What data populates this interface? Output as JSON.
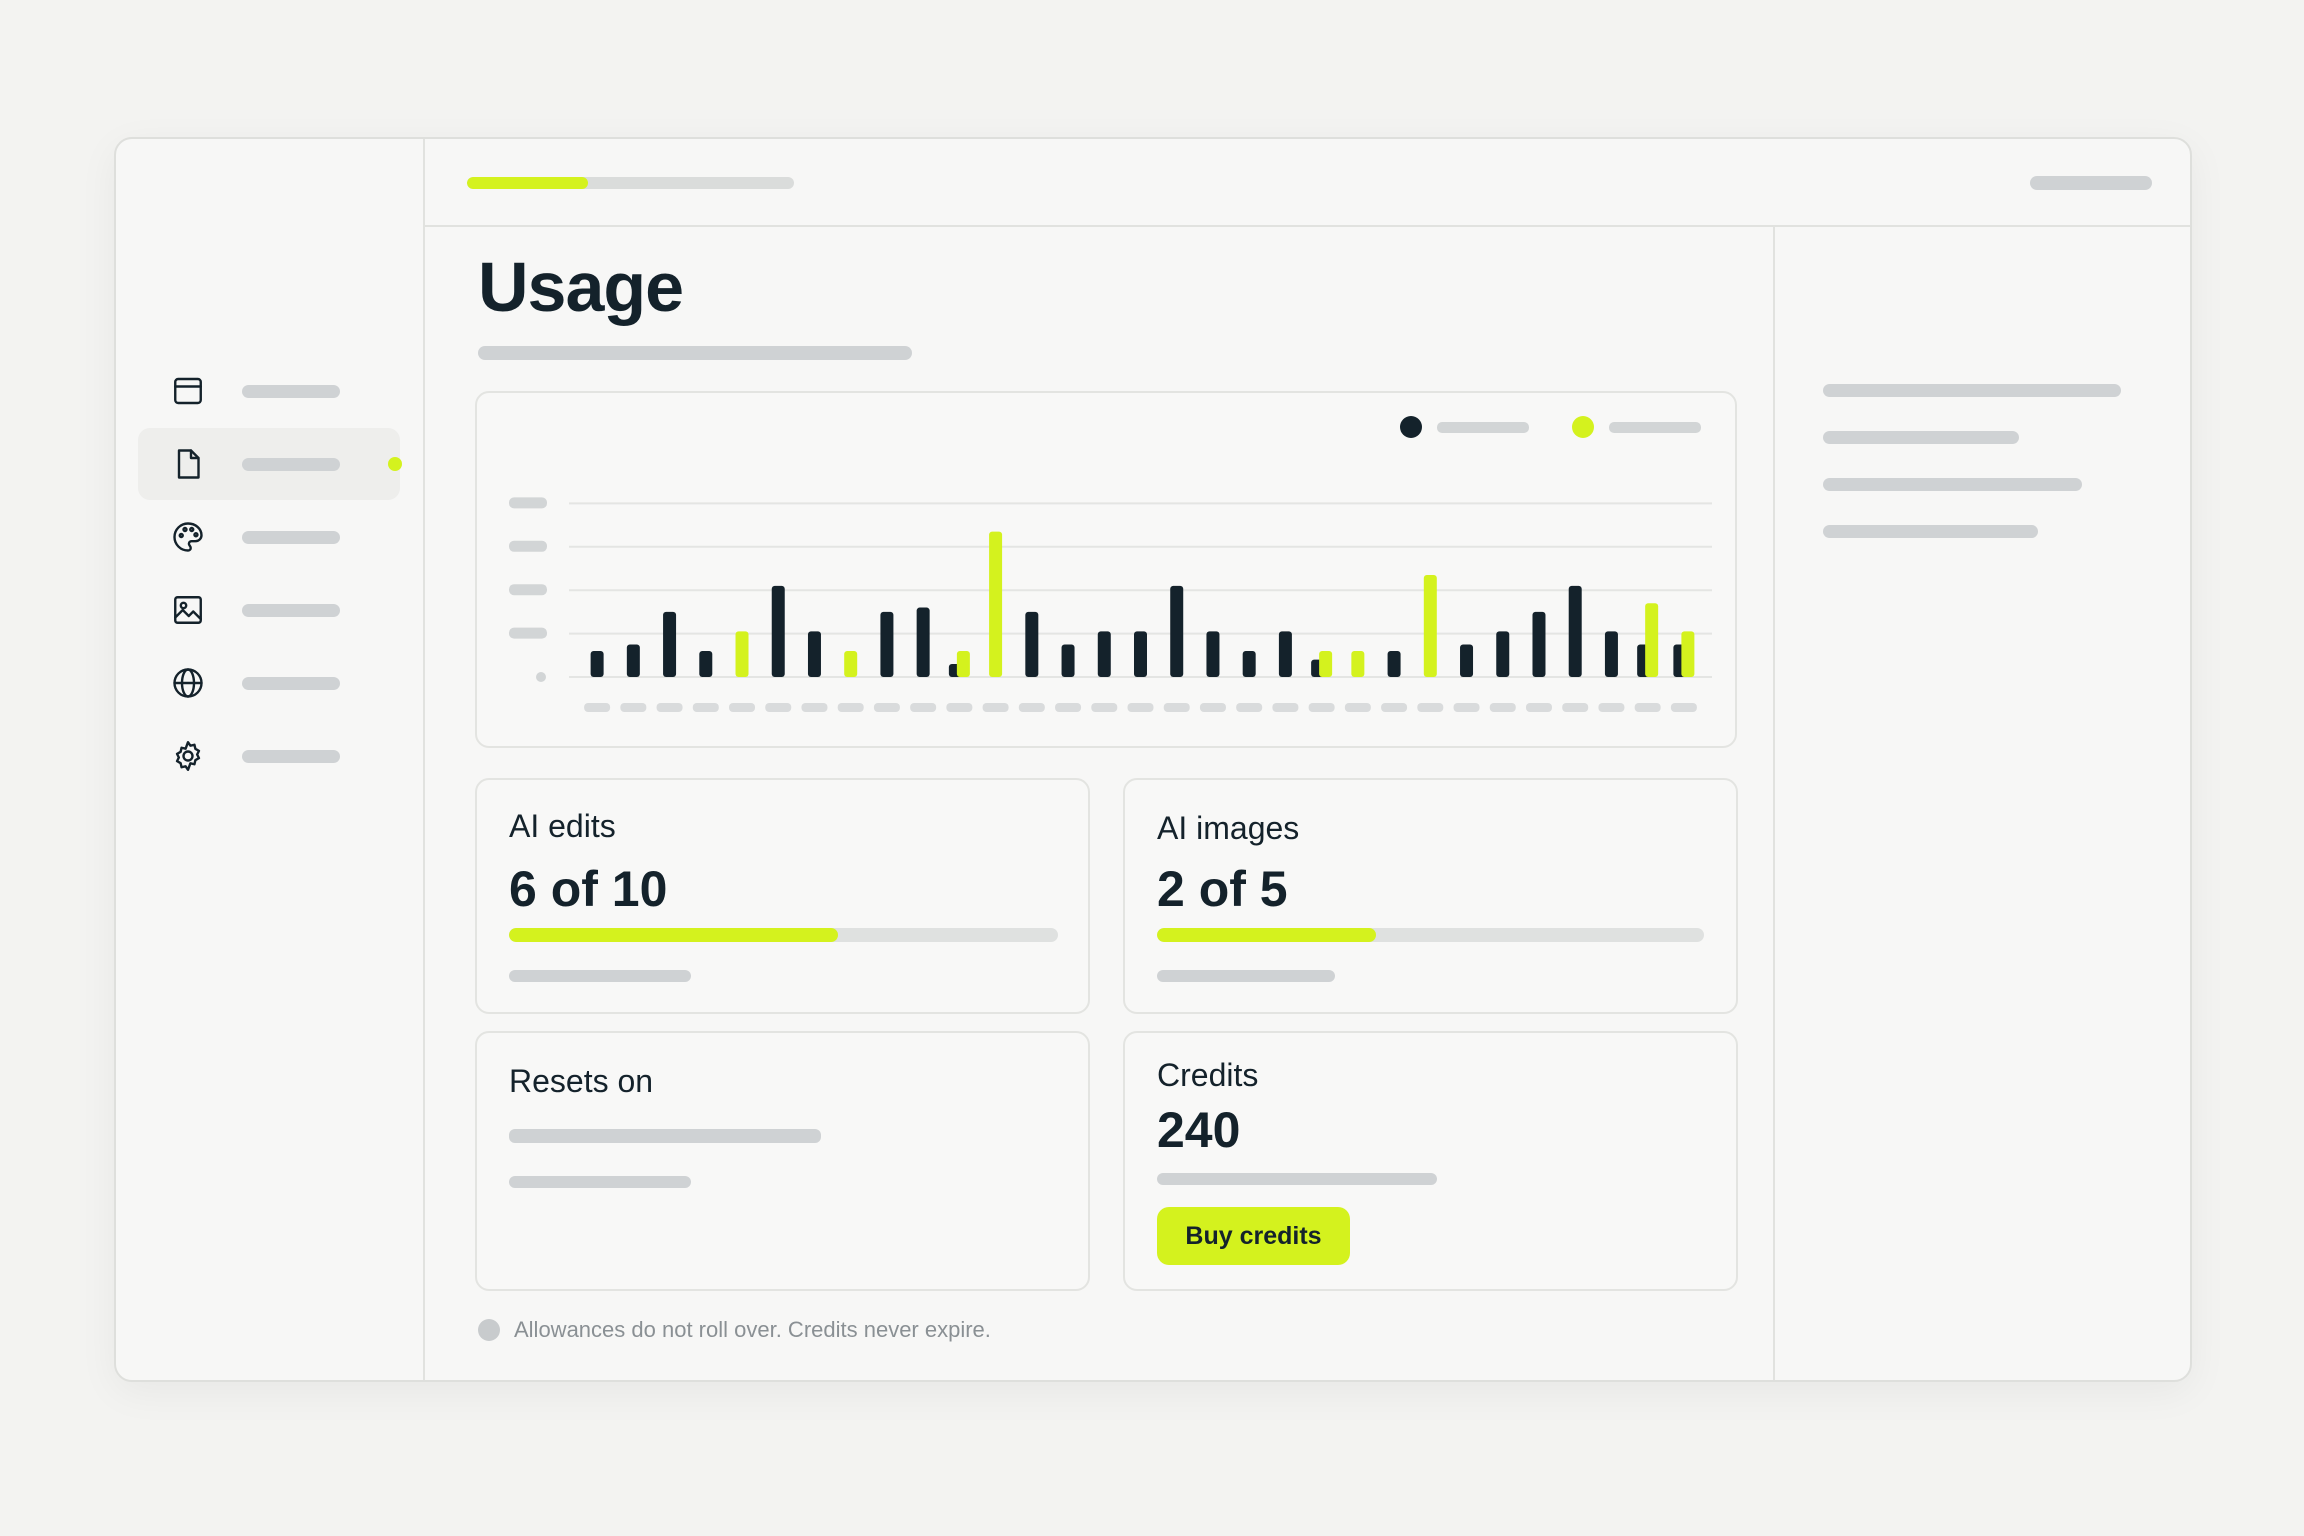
{
  "main": {
    "title": "Usage"
  },
  "chart": {
    "series": [
      {
        "name": "",
        "color": "#14222b"
      },
      {
        "name": "",
        "color": "#d4f21e"
      }
    ],
    "chart_data": {
      "type": "bar",
      "title": "",
      "xlabel": "",
      "ylabel": "",
      "ylim": [
        0,
        5
      ],
      "grid": true,
      "legend": "top-right",
      "series": [
        {
          "name": "",
          "values": [
            0.6,
            0.75,
            1.5,
            0.6,
            0,
            2.1,
            1.05,
            0,
            1.5,
            1.6,
            0.3,
            0,
            1.5,
            0.75,
            1.05,
            1.05,
            2.1,
            1.05,
            0.6,
            1.05,
            0.4,
            0,
            0.6,
            0,
            0.75,
            1.05,
            1.5,
            2.1,
            1.05,
            0.75,
            0.75
          ]
        },
        {
          "name": "",
          "values": [
            0,
            0,
            0,
            0,
            1.05,
            0,
            0,
            0.6,
            0,
            0,
            0.6,
            3.35,
            0,
            0,
            0,
            0,
            0,
            0,
            0,
            0,
            0.6,
            0.6,
            0,
            2.35,
            0,
            0,
            0,
            0,
            0,
            1.7,
            1.05
          ]
        }
      ]
    }
  },
  "cards": {
    "ai_edits": {
      "title": "AI edits",
      "value": "6 of 10",
      "used": 6,
      "total": 10
    },
    "ai_images": {
      "title": "AI images",
      "value": "2 of 5",
      "used": 2,
      "total": 5
    },
    "resets": {
      "title": "Resets on"
    },
    "credits": {
      "title": "Credits",
      "value": "240",
      "button": "Buy credits"
    }
  },
  "footnote": "Allowances do not roll over. Credits never expire.",
  "nav": {
    "icons": [
      "calendar-icon",
      "document-icon",
      "palette-icon",
      "image-icon",
      "globe-icon",
      "gear-icon"
    ],
    "active_index": 1
  },
  "topbar": {
    "progress": 0.37
  },
  "colors": {
    "accent": "#d4f21e",
    "dark": "#14222b"
  }
}
